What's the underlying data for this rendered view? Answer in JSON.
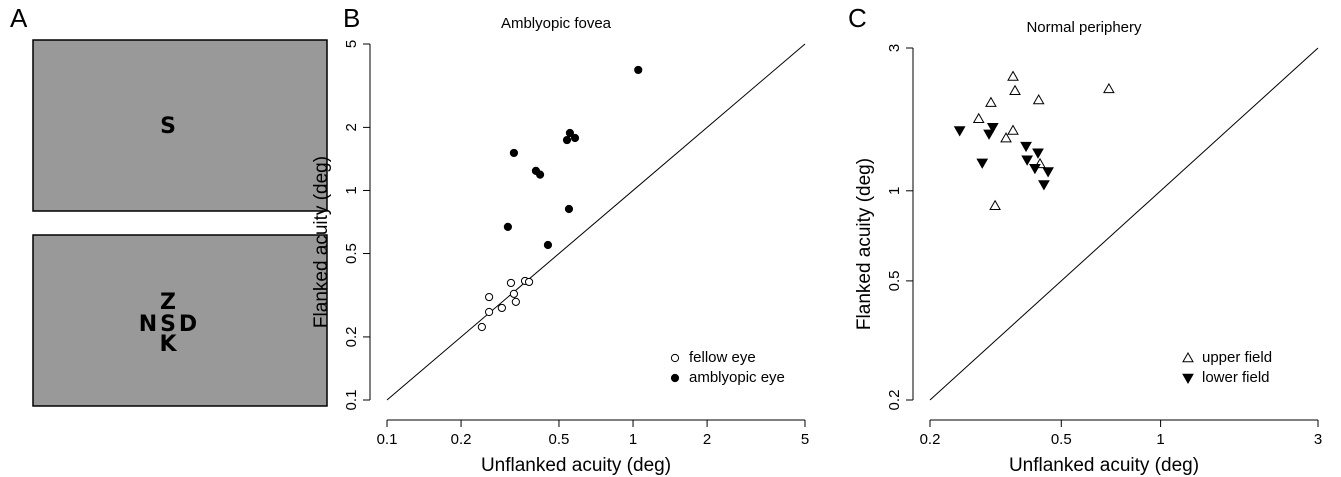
{
  "panel_labels": [
    "A",
    "B",
    "C"
  ],
  "stimulus": {
    "single": "S",
    "flanked": {
      "top": "Z",
      "left": "N",
      "center": "S",
      "right": "D",
      "bottom": "K"
    }
  },
  "chart_data": [
    {
      "type": "scatter",
      "title": "Amblyopic fovea",
      "x_label": "Unflanked acuity (deg)",
      "y_label": "Flanked acuity (deg)",
      "log_x": true,
      "log_y": true,
      "xlim": [
        0.1,
        5
      ],
      "ylim": [
        0.1,
        5
      ],
      "xticks": [
        0.1,
        0.2,
        0.5,
        1,
        2,
        5
      ],
      "yticks": [
        0.1,
        0.2,
        0.5,
        1,
        2,
        5
      ],
      "identity_line": true,
      "legend": "lower right",
      "series": [
        {
          "name": "fellow eye",
          "color": "#000000",
          "marker": "circle-open",
          "x": [
            0.243,
            0.26,
            0.26,
            0.293,
            0.319,
            0.328,
            0.334,
            0.364,
            0.378
          ],
          "values": [
            0.223,
            0.263,
            0.31,
            0.275,
            0.362,
            0.321,
            0.294,
            0.37,
            0.366
          ]
        },
        {
          "name": "amblyopic eye",
          "color": "#000000",
          "marker": "circle-filled",
          "x": [
            1.05,
            0.328,
            0.403,
            0.419,
            0.539,
            0.554,
            0.581,
            0.549,
            0.31,
            0.451
          ],
          "values": [
            3.76,
            1.51,
            1.24,
            1.19,
            1.74,
            1.88,
            1.78,
            0.816,
            0.67,
            0.549
          ]
        }
      ]
    },
    {
      "type": "scatter",
      "title": "Normal periphery",
      "x_label": "Unflanked acuity (deg)",
      "y_label": "Flanked acuity (deg)",
      "log_x": true,
      "log_y": true,
      "xlim": [
        0.2,
        3
      ],
      "ylim": [
        0.2,
        3
      ],
      "xticks": [
        0.2,
        0.5,
        1,
        3
      ],
      "yticks": [
        0.2,
        0.5,
        1,
        3
      ],
      "identity_line": true,
      "legend": "lower right",
      "series": [
        {
          "name": "upper field",
          "color": "#000000",
          "marker": "triangle-up-open",
          "x": [
            0.357,
            0.362,
            0.306,
            0.427,
            0.697,
            0.281,
            0.357,
            0.34,
            0.431,
            0.315
          ],
          "values": [
            2.41,
            2.16,
            1.97,
            2.01,
            2.19,
            1.74,
            1.59,
            1.5,
            1.23,
            0.891
          ]
        },
        {
          "name": "lower field",
          "color": "#000000",
          "marker": "triangle-down-filled",
          "x": [
            0.246,
            0.31,
            0.302,
            0.288,
            0.391,
            0.425,
            0.394,
            0.416,
            0.456,
            0.443
          ],
          "values": [
            1.59,
            1.63,
            1.55,
            1.24,
            1.41,
            1.34,
            1.27,
            1.19,
            1.16,
            1.05
          ]
        }
      ]
    }
  ]
}
